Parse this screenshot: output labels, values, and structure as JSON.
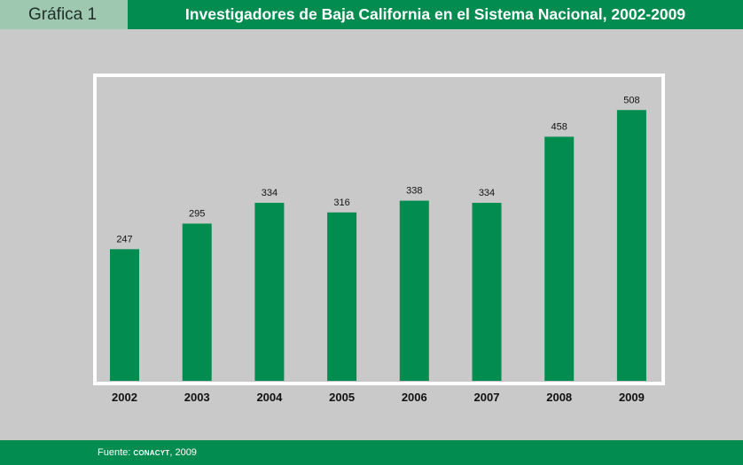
{
  "header": {
    "label": "Gráfica 1",
    "title": "Investigadores de Baja California en el Sistema Nacional, 2002-2009"
  },
  "footer": {
    "source_prefix": "Fuente:",
    "source_org": "CONACYT",
    "source_year": ", 2009"
  },
  "colors": {
    "accent": "#028c50",
    "label_box": "#9ec9b0",
    "background": "#c9c9c9",
    "frame": "#ffffff"
  },
  "chart_data": {
    "type": "bar",
    "title": "Investigadores de Baja California en el Sistema Nacional, 2002-2009",
    "categories": [
      "2002",
      "2003",
      "2004",
      "2005",
      "2006",
      "2007",
      "2008",
      "2009"
    ],
    "values": [
      247,
      295,
      334,
      316,
      338,
      334,
      458,
      508
    ],
    "xlabel": "",
    "ylabel": "",
    "ylim": [
      0,
      545
    ],
    "grid": false,
    "legend": "none",
    "data_labels": true
  }
}
